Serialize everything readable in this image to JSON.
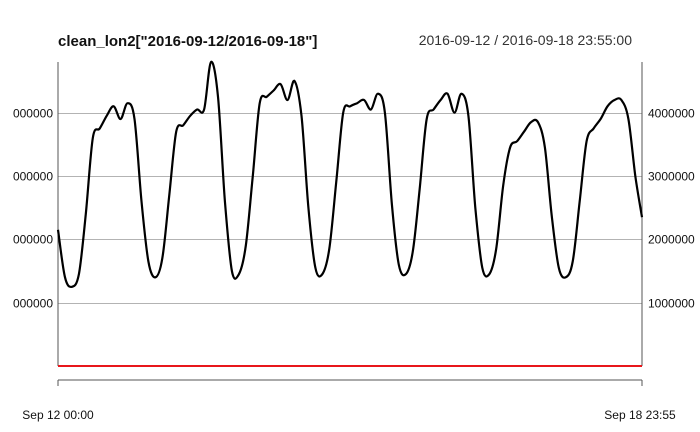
{
  "chart_data": {
    "type": "line",
    "title": "clean_lon2[\"2016-09-12/2016-09-18\"]",
    "date_range": "2016-09-12 / 2016-09-18 23:55:00",
    "x_start_label": "Sep 12 00:00",
    "x_end_label": "Sep 18 23:55",
    "x_start": "2016-09-12 00:00",
    "x_end": "2016-09-18 23:55",
    "ylim": [
      0,
      4800000
    ],
    "yticks_left": [
      {
        "value": 1000000,
        "label": "000000"
      },
      {
        "value": 2000000,
        "label": "000000"
      },
      {
        "value": 3000000,
        "label": "000000"
      },
      {
        "value": 4000000,
        "label": "000000"
      }
    ],
    "yticks_right": [
      {
        "value": 1000000,
        "label": "1000000"
      },
      {
        "value": 2000000,
        "label": "2000000"
      },
      {
        "value": 3000000,
        "label": "3000000"
      },
      {
        "value": 4000000,
        "label": "4000000"
      }
    ],
    "grid": true,
    "series": [
      {
        "color": "#000000",
        "x": [
          "2016-09-12 00:00",
          "2016-09-12 02:00",
          "2016-09-12 04:00",
          "2016-09-12 06:00",
          "2016-09-12 08:00",
          "2016-09-12 10:00",
          "2016-09-12 12:00",
          "2016-09-12 14:00",
          "2016-09-12 16:00",
          "2016-09-12 18:00",
          "2016-09-12 20:00",
          "2016-09-12 22:00",
          "2016-09-13 00:00",
          "2016-09-13 02:00",
          "2016-09-13 04:00",
          "2016-09-13 06:00",
          "2016-09-13 08:00",
          "2016-09-13 10:00",
          "2016-09-13 12:00",
          "2016-09-13 14:00",
          "2016-09-13 16:00",
          "2016-09-13 18:00",
          "2016-09-13 20:00",
          "2016-09-13 22:00",
          "2016-09-14 00:00",
          "2016-09-14 02:00",
          "2016-09-14 04:00",
          "2016-09-14 06:00",
          "2016-09-14 08:00",
          "2016-09-14 10:00",
          "2016-09-14 12:00",
          "2016-09-14 14:00",
          "2016-09-14 16:00",
          "2016-09-14 18:00",
          "2016-09-14 20:00",
          "2016-09-14 22:00",
          "2016-09-15 00:00",
          "2016-09-15 02:00",
          "2016-09-15 04:00",
          "2016-09-15 06:00",
          "2016-09-15 08:00",
          "2016-09-15 10:00",
          "2016-09-15 12:00",
          "2016-09-15 14:00",
          "2016-09-15 16:00",
          "2016-09-15 18:00",
          "2016-09-15 20:00",
          "2016-09-15 22:00",
          "2016-09-16 00:00",
          "2016-09-16 02:00",
          "2016-09-16 04:00",
          "2016-09-16 06:00",
          "2016-09-16 08:00",
          "2016-09-16 10:00",
          "2016-09-16 12:00",
          "2016-09-16 14:00",
          "2016-09-16 16:00",
          "2016-09-16 18:00",
          "2016-09-16 20:00",
          "2016-09-16 22:00",
          "2016-09-17 00:00",
          "2016-09-17 02:00",
          "2016-09-17 04:00",
          "2016-09-17 06:00",
          "2016-09-17 08:00",
          "2016-09-17 10:00",
          "2016-09-17 12:00",
          "2016-09-17 14:00",
          "2016-09-17 16:00",
          "2016-09-17 18:00",
          "2016-09-17 20:00",
          "2016-09-17 22:00",
          "2016-09-18 00:00",
          "2016-09-18 02:00",
          "2016-09-18 04:00",
          "2016-09-18 06:00",
          "2016-09-18 08:00",
          "2016-09-18 10:00",
          "2016-09-18 12:00",
          "2016-09-18 14:00",
          "2016-09-18 16:00",
          "2016-09-18 18:00",
          "2016-09-18 20:00",
          "2016-09-18 22:00",
          "2016-09-18 23:55"
        ],
        "values": [
          2150000,
          1400000,
          1250000,
          1450000,
          2400000,
          3600000,
          3750000,
          3950000,
          4100000,
          3900000,
          4150000,
          3900000,
          2600000,
          1650000,
          1400000,
          1700000,
          2700000,
          3700000,
          3800000,
          3950000,
          4050000,
          4050000,
          4800000,
          4250000,
          2600000,
          1500000,
          1450000,
          1900000,
          3000000,
          4150000,
          4250000,
          4350000,
          4450000,
          4200000,
          4500000,
          3950000,
          2500000,
          1550000,
          1450000,
          1850000,
          2900000,
          4000000,
          4100000,
          4150000,
          4200000,
          4050000,
          4300000,
          4000000,
          2550000,
          1600000,
          1450000,
          1800000,
          2800000,
          3900000,
          4050000,
          4200000,
          4300000,
          4000000,
          4300000,
          3950000,
          2500000,
          1550000,
          1450000,
          1850000,
          2850000,
          3450000,
          3550000,
          3700000,
          3850000,
          3850000,
          3450000,
          2350000,
          1550000,
          1400000,
          1650000,
          2600000,
          3550000,
          3750000,
          3900000,
          4100000,
          4200000,
          4200000,
          3900000,
          3000000,
          2350000
        ]
      },
      {
        "color": "#e8161b",
        "x": [
          "2016-09-12 00:00",
          "2016-09-18 23:55"
        ],
        "values": [
          0,
          0
        ]
      }
    ]
  }
}
